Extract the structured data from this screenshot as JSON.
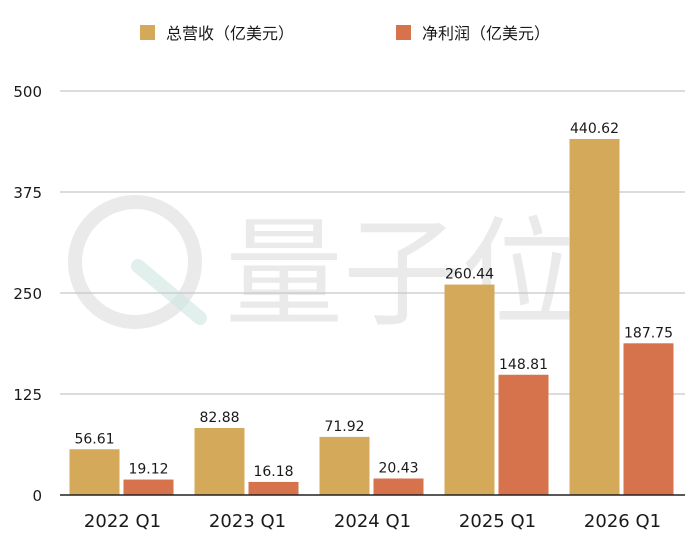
{
  "colors": {
    "revenue": "#D4A95A",
    "profit": "#D6734D",
    "grid": "#c8c8c8",
    "axis": "#222222",
    "watermark": "#dcdcdc"
  },
  "watermark": {
    "text": "量子位",
    "icon": "quantum-bit-logo-icon"
  },
  "chart_data": {
    "type": "bar",
    "categories": [
      "2022 Q1",
      "2023 Q1",
      "2024 Q1",
      "2025 Q1",
      "2026 Q1"
    ],
    "series": [
      {
        "name": "总营收（亿美元）",
        "values": [
          56.61,
          82.88,
          71.92,
          260.44,
          440.62
        ]
      },
      {
        "name": "净利润（亿美元）",
        "values": [
          19.12,
          16.18,
          20.43,
          148.81,
          187.75
        ]
      }
    ],
    "y_ticks": [
      0,
      125,
      250,
      375,
      500
    ],
    "ylim": [
      0,
      500
    ],
    "grid": true,
    "legend_position": "top-center",
    "title": "",
    "xlabel": "",
    "ylabel": ""
  }
}
